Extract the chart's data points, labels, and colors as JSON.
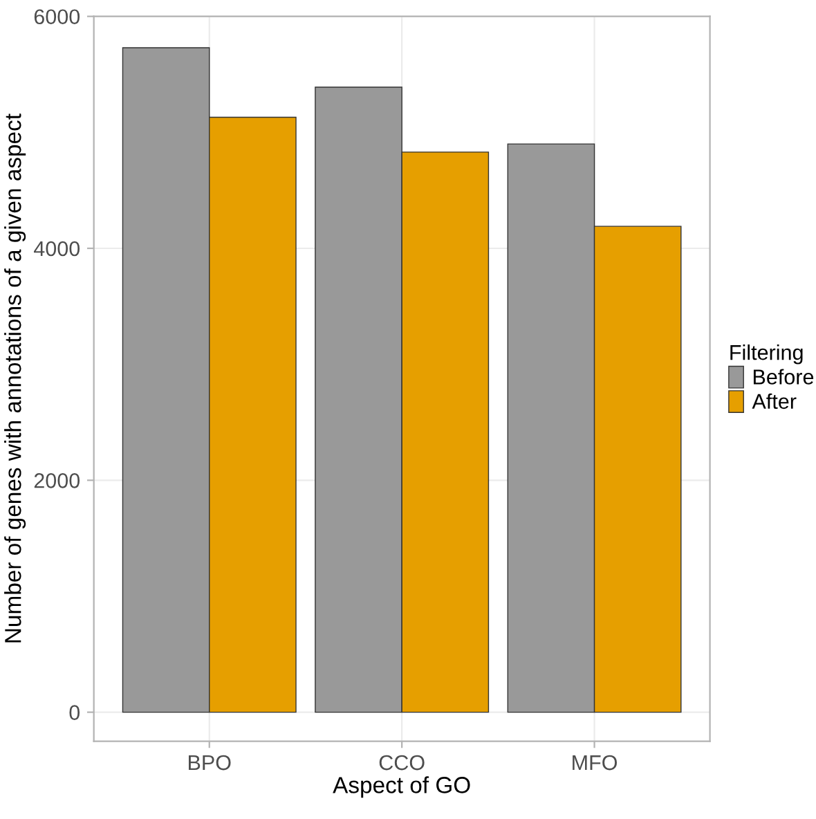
{
  "chart_data": {
    "type": "bar",
    "xlabel": "Aspect of GO",
    "ylabel": "Number of genes with annotations of a given aspect",
    "legend_title": "Filtering",
    "categories": [
      "BPO",
      "CCO",
      "MFO"
    ],
    "series": [
      {
        "name": "Before",
        "color": "#999999",
        "values": [
          5730,
          5390,
          4900
        ]
      },
      {
        "name": "After",
        "color": "#e69f00",
        "values": [
          5130,
          4830,
          4190
        ]
      }
    ],
    "ylim": [
      -250,
      6000
    ],
    "yticks": [
      0,
      2000,
      4000,
      6000
    ],
    "grid": true,
    "legend": "right"
  }
}
